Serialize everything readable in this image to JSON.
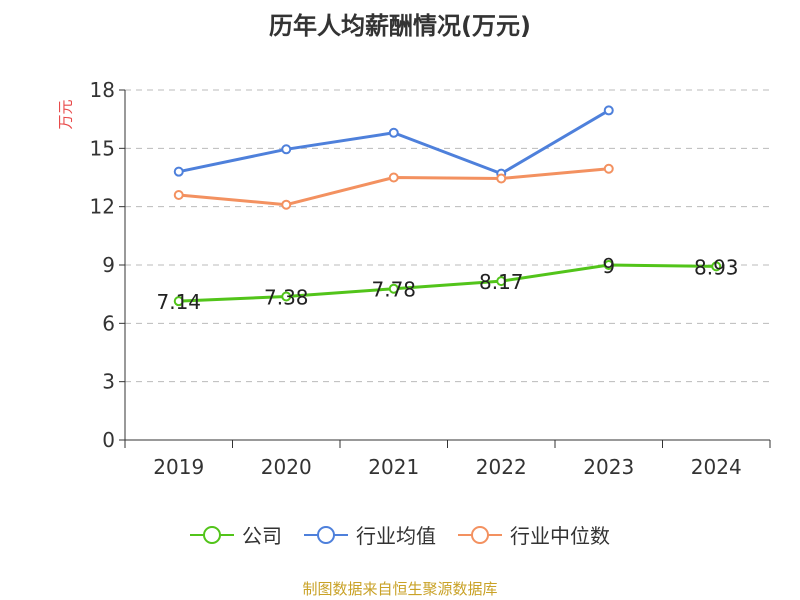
{
  "chart_data": {
    "type": "line",
    "title": "历年人均薪酬情况(万元)",
    "ylabel": "万元",
    "xlabel": "",
    "categories": [
      "2019",
      "2020",
      "2021",
      "2022",
      "2023",
      "2024"
    ],
    "ylim": [
      0,
      18
    ],
    "yticks": [
      0,
      3,
      6,
      9,
      12,
      15,
      18
    ],
    "grid": true,
    "legend_position": "bottom",
    "series": [
      {
        "name": "公司",
        "color": "#52c41a",
        "values": [
          7.14,
          7.38,
          7.78,
          8.17,
          9,
          8.93
        ],
        "labels": [
          "7.14",
          "7.38",
          "7.78",
          "8.17",
          "9",
          "8.93"
        ]
      },
      {
        "name": "行业均值",
        "color": "#4e80db",
        "values": [
          13.8,
          14.95,
          15.8,
          13.7,
          16.95,
          null
        ]
      },
      {
        "name": "行业中位数",
        "color": "#f39160",
        "values": [
          12.6,
          12.1,
          13.5,
          13.45,
          13.95,
          null
        ]
      }
    ]
  },
  "source_note": "制图数据来自恒生聚源数据库"
}
